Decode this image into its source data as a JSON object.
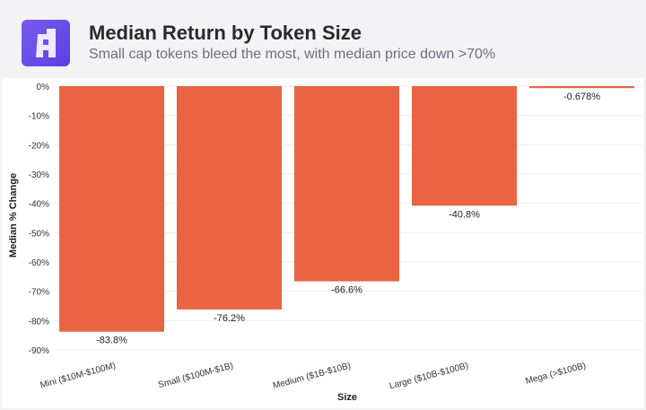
{
  "header": {
    "title": "Median Return by Token Size",
    "subtitle": "Small cap tokens bleed the most, with median price down >70%",
    "logo_color": "#6a4cea"
  },
  "chart_data": {
    "type": "bar",
    "title": "Median Return by Token Size",
    "subtitle": "Small cap tokens bleed the most, with median price down >70%",
    "xlabel": "Size",
    "ylabel": "Median % Change",
    "categories": [
      "Mini ($10M-$100M)",
      "Small ($100M-$1B)",
      "Medium ($1B-$10B)",
      "Large ($10B-$100B)",
      "Mega (>$100B)"
    ],
    "values": [
      -83.8,
      -76.2,
      -66.6,
      -40.8,
      -0.678
    ],
    "data_labels": [
      "-83.8%",
      "-76.2%",
      "-66.6%",
      "-40.8%",
      "-0.678%"
    ],
    "ylim": [
      -90,
      0
    ],
    "yticks": [
      "0%",
      "-10%",
      "-20%",
      "-30%",
      "-40%",
      "-50%",
      "-60%",
      "-70%",
      "-80%",
      "-90%"
    ],
    "grid": true,
    "bar_color": "#ea6443"
  }
}
